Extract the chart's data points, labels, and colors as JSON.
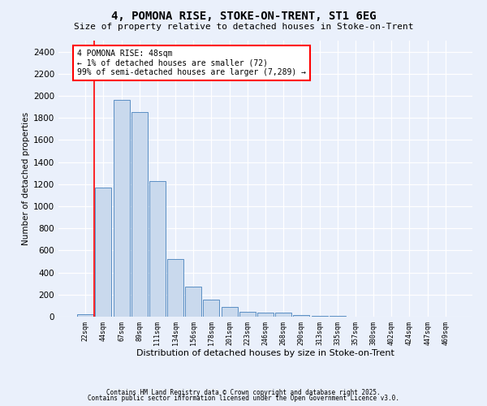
{
  "title_line1": "4, POMONA RISE, STOKE-ON-TRENT, ST1 6EG",
  "title_line2": "Size of property relative to detached houses in Stoke-on-Trent",
  "xlabel": "Distribution of detached houses by size in Stoke-on-Trent",
  "ylabel": "Number of detached properties",
  "bin_labels": [
    "22sqm",
    "44sqm",
    "67sqm",
    "89sqm",
    "111sqm",
    "134sqm",
    "156sqm",
    "178sqm",
    "201sqm",
    "223sqm",
    "246sqm",
    "268sqm",
    "290sqm",
    "313sqm",
    "335sqm",
    "357sqm",
    "380sqm",
    "402sqm",
    "424sqm",
    "447sqm",
    "469sqm"
  ],
  "bar_values": [
    25,
    1170,
    1960,
    1850,
    1230,
    520,
    275,
    155,
    90,
    45,
    40,
    40,
    18,
    8,
    5,
    3,
    2,
    2,
    1,
    1,
    1
  ],
  "bar_color": "#c9d9ed",
  "bar_edge_color": "#5b8fc4",
  "vline_color": "red",
  "vline_x_index": 0.5,
  "annotation_text": "4 POMONA RISE: 48sqm\n← 1% of detached houses are smaller (72)\n99% of semi-detached houses are larger (7,289) →",
  "annotation_box_color": "white",
  "annotation_box_edge": "red",
  "ylim": [
    0,
    2500
  ],
  "yticks": [
    0,
    200,
    400,
    600,
    800,
    1000,
    1200,
    1400,
    1600,
    1800,
    2000,
    2200,
    2400
  ],
  "background_color": "#eaf0fb",
  "grid_color": "white",
  "footer_line1": "Contains HM Land Registry data © Crown copyright and database right 2025.",
  "footer_line2": "Contains public sector information licensed under the Open Government Licence v3.0."
}
